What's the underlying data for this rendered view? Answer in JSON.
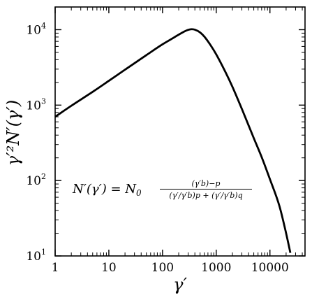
{
  "chart_data": {
    "type": "line",
    "xscale": "log",
    "yscale": "log",
    "xlim": [
      1,
      45000
    ],
    "ylim": [
      10,
      20000
    ],
    "xlabel": "γ′",
    "ylabel": "γ′²N′(γ′)",
    "grid": false,
    "x_ticks": [
      {
        "value": 1,
        "label": "1"
      },
      {
        "value": 10,
        "label": "10"
      },
      {
        "value": 100,
        "label": "100"
      },
      {
        "value": 1000,
        "label": "1000"
      },
      {
        "value": 10000,
        "label": "10000"
      }
    ],
    "y_ticks": [
      {
        "value": 10,
        "base": "10",
        "exp": "1"
      },
      {
        "value": 100,
        "base": "10",
        "exp": "2"
      },
      {
        "value": 1000,
        "base": "10",
        "exp": "3"
      },
      {
        "value": 10000,
        "base": "10",
        "exp": "4"
      }
    ],
    "series": [
      {
        "x": [
          1,
          2,
          5,
          10,
          20,
          50,
          100,
          150,
          200,
          250,
          300,
          350,
          400,
          500,
          600,
          800,
          1000,
          1500,
          2000,
          3000,
          5000,
          7000,
          10000,
          15000,
          20000,
          24000
        ],
        "y": [
          700,
          980,
          1500,
          2100,
          2950,
          4600,
          6400,
          7600,
          8600,
          9400,
          9950,
          10150,
          10000,
          9200,
          8100,
          6100,
          4700,
          2700,
          1750,
          890,
          365,
          205,
          104,
          46,
          20,
          11
        ]
      }
    ],
    "annotation": {
      "lhs": "N′(γ′) = N",
      "lhs_sub": "0",
      "numerator": "(γ′b)−p",
      "denominator": "(γ′/γ′b)p + (γ′/γ′b)q"
    }
  }
}
